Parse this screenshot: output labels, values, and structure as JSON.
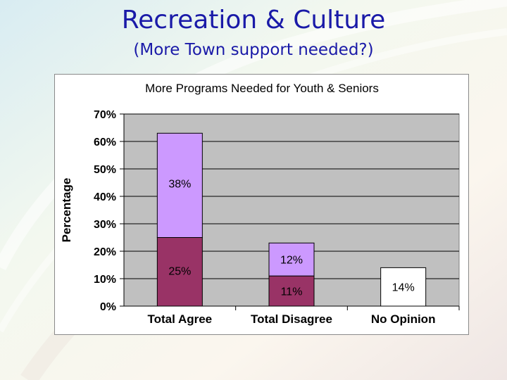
{
  "slide": {
    "title": "Recreation & Culture",
    "subtitle": "(More Town support needed?)"
  },
  "colors": {
    "title": "#1a1aa8",
    "plot_bg": "#c0c0c0",
    "dark_segment": "#993366",
    "light_segment": "#cc99ff",
    "no_opinion": "#ffffff"
  },
  "chart_data": {
    "type": "bar",
    "stacked": true,
    "title": "More Programs Needed for Youth & Seniors",
    "xlabel": "",
    "ylabel": "Percentage",
    "ylim": [
      0,
      70
    ],
    "yticks": [
      "0%",
      "10%",
      "20%",
      "30%",
      "40%",
      "50%",
      "60%",
      "70%"
    ],
    "categories": [
      "Total Agree",
      "Total Disagree",
      "No Opinion"
    ],
    "grid": true,
    "legend": "none",
    "series": [
      {
        "values": [
          25,
          11,
          14
        ],
        "labels": [
          "25%",
          "11%",
          "14%"
        ],
        "colors": [
          "#993366",
          "#993366",
          "#ffffff"
        ]
      },
      {
        "values": [
          38,
          12,
          0
        ],
        "labels": [
          "38%",
          "12%",
          ""
        ],
        "colors": [
          "#cc99ff",
          "#cc99ff",
          "#ffffff"
        ]
      }
    ]
  }
}
